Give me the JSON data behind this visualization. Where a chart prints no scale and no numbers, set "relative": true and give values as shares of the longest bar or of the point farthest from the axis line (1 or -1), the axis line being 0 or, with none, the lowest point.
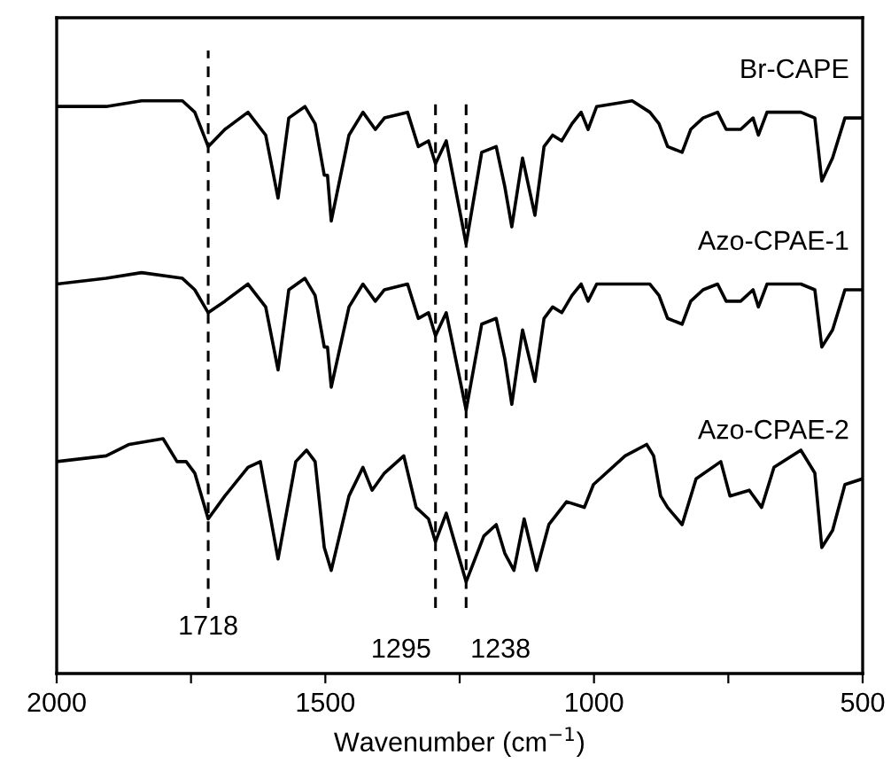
{
  "chart_data": {
    "type": "line",
    "relative": true,
    "xlabel": "Wavenumber (cm$^{−1}$)",
    "xlim": [
      2000,
      500
    ],
    "xticks": [
      2000,
      {
        "value": 1750,
        "label": null
      },
      1500,
      {
        "value": 1250,
        "label": null
      },
      1000,
      {
        "value": 750,
        "label": null
      },
      500
    ],
    "legend": false,
    "grid": false,
    "marker": "none",
    "line_style": "solid",
    "tick_labels": "x",
    "series": [
      {
        "name": "Br-CAPE",
        "color": "#000000",
        "x": [
          2000,
          1908,
          1842,
          1766,
          1743,
          1718,
          1687,
          1644,
          1611,
          1588,
          1568,
          1538,
          1519,
          1502,
          1496,
          1489,
          1456,
          1430,
          1407,
          1390,
          1347,
          1327,
          1308,
          1295,
          1275,
          1238,
          1209,
          1182,
          1166,
          1153,
          1133,
          1110,
          1093,
          1077,
          1060,
          1041,
          1024,
          1011,
          995,
          929,
          896,
          879,
          863,
          836,
          820,
          797,
          770,
          754,
          727,
          704,
          694,
          678,
          615,
          589,
          576,
          556,
          533,
          500
        ],
        "values": [
          0.99,
          0.99,
          1.0,
          1.0,
          0.98,
          0.92,
          0.95,
          0.98,
          0.94,
          0.83,
          0.97,
          0.99,
          0.96,
          0.87,
          0.87,
          0.79,
          0.94,
          0.98,
          0.95,
          0.97,
          0.98,
          0.92,
          0.93,
          0.89,
          0.93,
          0.75,
          0.91,
          0.92,
          0.85,
          0.78,
          0.9,
          0.8,
          0.92,
          0.94,
          0.93,
          0.96,
          0.98,
          0.95,
          0.99,
          1.0,
          0.98,
          0.96,
          0.92,
          0.91,
          0.95,
          0.97,
          0.98,
          0.95,
          0.95,
          0.97,
          0.94,
          0.98,
          0.98,
          0.97,
          0.86,
          0.9,
          0.97,
          0.97
        ]
      },
      {
        "name": "Azo-CPAE-1",
        "color": "#000000",
        "x": [
          2000,
          1908,
          1842,
          1766,
          1743,
          1718,
          1687,
          1644,
          1611,
          1588,
          1568,
          1538,
          1519,
          1502,
          1496,
          1489,
          1456,
          1430,
          1407,
          1390,
          1347,
          1327,
          1308,
          1295,
          1275,
          1238,
          1209,
          1182,
          1166,
          1153,
          1133,
          1110,
          1093,
          1077,
          1060,
          1041,
          1024,
          1011,
          995,
          929,
          896,
          879,
          863,
          836,
          820,
          797,
          770,
          754,
          727,
          704,
          694,
          678,
          615,
          589,
          576,
          556,
          533,
          500
        ],
        "values": [
          0.68,
          0.69,
          0.7,
          0.69,
          0.67,
          0.63,
          0.65,
          0.68,
          0.64,
          0.53,
          0.67,
          0.69,
          0.66,
          0.57,
          0.57,
          0.5,
          0.64,
          0.68,
          0.65,
          0.67,
          0.68,
          0.62,
          0.63,
          0.59,
          0.63,
          0.46,
          0.61,
          0.62,
          0.55,
          0.47,
          0.6,
          0.51,
          0.62,
          0.64,
          0.63,
          0.66,
          0.68,
          0.65,
          0.68,
          0.68,
          0.68,
          0.66,
          0.62,
          0.61,
          0.65,
          0.67,
          0.68,
          0.65,
          0.65,
          0.67,
          0.64,
          0.68,
          0.68,
          0.67,
          0.57,
          0.6,
          0.67,
          0.67
        ]
      },
      {
        "name": "Azo-CPAE-2",
        "color": "#000000",
        "x": [
          2000,
          1908,
          1865,
          1802,
          1776,
          1759,
          1743,
          1718,
          1687,
          1644,
          1621,
          1588,
          1555,
          1535,
          1519,
          1502,
          1489,
          1456,
          1430,
          1413,
          1390,
          1354,
          1331,
          1308,
          1295,
          1275,
          1238,
          1205,
          1182,
          1166,
          1149,
          1130,
          1107,
          1084,
          1051,
          1018,
          1001,
          942,
          902,
          889,
          876,
          863,
          836,
          810,
          764,
          747,
          711,
          688,
          665,
          615,
          589,
          576,
          556,
          533,
          500
        ],
        "values": [
          0.37,
          0.38,
          0.4,
          0.41,
          0.37,
          0.37,
          0.35,
          0.27,
          0.31,
          0.36,
          0.37,
          0.2,
          0.37,
          0.39,
          0.37,
          0.22,
          0.18,
          0.31,
          0.36,
          0.32,
          0.35,
          0.38,
          0.29,
          0.27,
          0.23,
          0.28,
          0.16,
          0.24,
          0.26,
          0.21,
          0.18,
          0.27,
          0.18,
          0.26,
          0.3,
          0.29,
          0.33,
          0.38,
          0.4,
          0.38,
          0.31,
          0.29,
          0.26,
          0.34,
          0.37,
          0.31,
          0.32,
          0.29,
          0.36,
          0.39,
          0.35,
          0.22,
          0.25,
          0.33,
          0.34
        ]
      }
    ],
    "ref_lines": [
      {
        "axis": "x",
        "value": 1718,
        "label": "1718",
        "line_style": "dashed",
        "color": "#000000"
      },
      {
        "axis": "x",
        "value": 1295,
        "label": "1295",
        "line_style": "dashed",
        "color": "#000000"
      },
      {
        "axis": "x",
        "value": 1238,
        "label": "1238",
        "line_style": "dashed",
        "color": "#000000"
      }
    ]
  }
}
